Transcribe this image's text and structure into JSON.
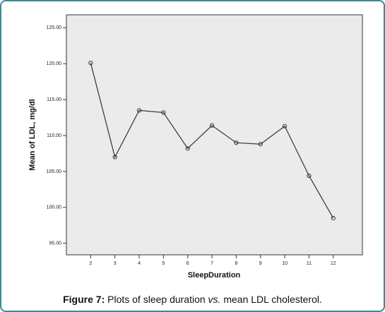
{
  "chart_data": {
    "type": "line",
    "x_label": "SleepDuration",
    "y_label": "Mean of LDL, mg/dl",
    "x": [
      2,
      3,
      4,
      5,
      6,
      7,
      8,
      9,
      10,
      11,
      12
    ],
    "series": [
      {
        "color": "#333333",
        "values": [
          120.1,
          107.0,
          113.5,
          113.2,
          108.2,
          111.4,
          109.0,
          108.8,
          111.3,
          104.4,
          98.5
        ]
      }
    ],
    "xlim": [
      1,
      13.2
    ],
    "xticks": [
      2,
      3,
      4,
      5,
      6,
      7,
      8,
      9,
      10,
      11,
      12
    ],
    "ylim": [
      93.4,
      126.8
    ],
    "yticks": [
      {
        "value": 95,
        "label": "95.00"
      },
      {
        "value": 100,
        "label": "100.00"
      },
      {
        "value": 105,
        "label": "105.00"
      },
      {
        "value": 110,
        "label": "110.00"
      },
      {
        "value": 115,
        "label": "115.00"
      },
      {
        "value": 120,
        "label": "120.00"
      },
      {
        "value": 125,
        "label": "125.00"
      }
    ],
    "grid": false
  },
  "caption": {
    "label": "Figure  7:",
    "text": "Plots of sleep duration",
    "emphasis": "vs.",
    "rest": "mean LDL cholesterol."
  }
}
